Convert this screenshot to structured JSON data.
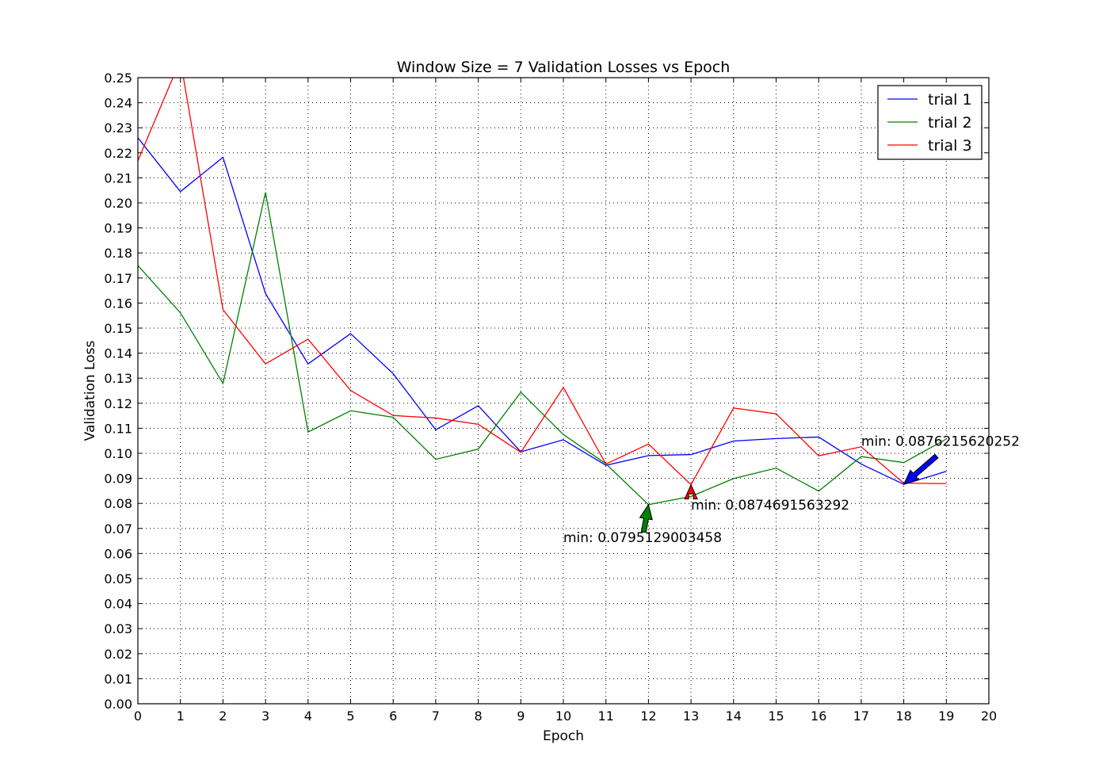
{
  "chart_data": {
    "type": "line",
    "title": "Window Size = 7 Validation Losses vs Epoch",
    "xlabel": "Epoch",
    "ylabel": "Validation Loss",
    "xlim": [
      0,
      20
    ],
    "ylim": [
      0,
      0.25
    ],
    "grid": true,
    "legend_position": "top-right",
    "x": [
      0,
      1,
      2,
      3,
      4,
      5,
      6,
      7,
      8,
      9,
      10,
      11,
      12,
      13,
      14,
      15,
      16,
      17,
      18,
      19
    ],
    "x_ticks": [
      "0",
      "1",
      "2",
      "3",
      "4",
      "5",
      "6",
      "7",
      "8",
      "9",
      "10",
      "11",
      "12",
      "13",
      "14",
      "15",
      "16",
      "17",
      "18",
      "19",
      "20"
    ],
    "y_ticks": [
      "0.00",
      "0.01",
      "0.02",
      "0.03",
      "0.04",
      "0.05",
      "0.06",
      "0.07",
      "0.08",
      "0.09",
      "0.10",
      "0.11",
      "0.12",
      "0.13",
      "0.14",
      "0.15",
      "0.16",
      "0.17",
      "0.18",
      "0.19",
      "0.20",
      "0.21",
      "0.22",
      "0.23",
      "0.24",
      "0.25"
    ],
    "series": [
      {
        "name": "trial 1",
        "color": "#0000ff",
        "values": [
          0.226,
          0.2045,
          0.2182,
          0.1638,
          0.1357,
          0.1478,
          0.1318,
          0.1094,
          0.119,
          0.1006,
          0.1054,
          0.0952,
          0.0991,
          0.0995,
          0.1049,
          0.1059,
          0.1065,
          0.0957,
          0.0876215620252,
          0.0928
        ]
      },
      {
        "name": "trial 2",
        "color": "#008000",
        "values": [
          0.175,
          0.1561,
          0.1279,
          0.2042,
          0.1085,
          0.117,
          0.1144,
          0.0976,
          0.1017,
          0.1244,
          0.1075,
          0.0958,
          0.0795129003458,
          0.0828,
          0.0899,
          0.0941,
          0.0849,
          0.0987,
          0.0963,
          0.1057
        ]
      },
      {
        "name": "trial 3",
        "color": "#ff0000",
        "values": [
          0.2168,
          0.2571,
          0.1574,
          0.1357,
          0.1456,
          0.1251,
          0.1151,
          0.1141,
          0.1116,
          0.1004,
          0.1263,
          0.0957,
          0.1037,
          0.0874691563292,
          0.1181,
          0.1158,
          0.099,
          0.1026,
          0.0881,
          0.0879
        ]
      }
    ],
    "annotations": [
      {
        "text": "min: 0.0876215620252",
        "series": "trial 1",
        "x": 18,
        "y": 0.0876215620252,
        "text_x": 17,
        "text_y": 0.103,
        "color": "#0000ff"
      },
      {
        "text": "min: 0.0795129003458",
        "series": "trial 2",
        "x": 12,
        "y": 0.0795129003458,
        "text_x": 10,
        "text_y": 0.0645,
        "color": "#008000"
      },
      {
        "text": "min: 0.0874691563292",
        "series": "trial 3",
        "x": 13,
        "y": 0.0874691563292,
        "text_x": 13,
        "text_y": 0.0775,
        "color": "#ff0000"
      }
    ]
  }
}
